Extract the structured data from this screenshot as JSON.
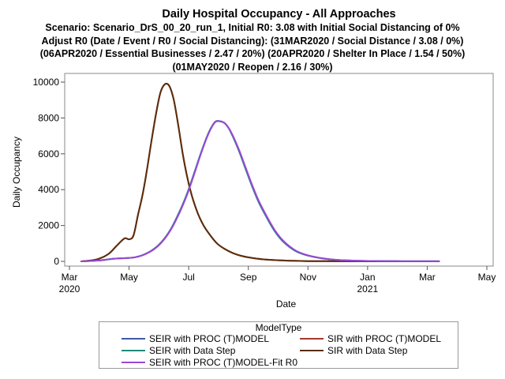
{
  "chart_data": {
    "type": "line",
    "title": "Daily Hospital Occupancy - All Approaches",
    "subtitle_lines": [
      "Scenario: Scenario_DrS_00_20_run_1, Initial R0: 3.08 with Initial Social Distancing of 0%",
      "Adjust R0 (Date / Event / R0 / Social Distancing): (31MAR2020 / Social Distance / 3.08 / 0%)",
      "(06APR2020 / Essential Businesses / 2.47 / 20%) (20APR2020 / Shelter In Place / 1.54 / 50%)",
      "(01MAY2020 / Reopen / 2.16 / 30%)"
    ],
    "xlabel": "Date",
    "ylabel": "Daily Occupancy",
    "ylim": [
      0,
      10000
    ],
    "yticks": [
      "0",
      "2000",
      "4000",
      "6000",
      "8000",
      "10000"
    ],
    "xlim_months": [
      0,
      14
    ],
    "xticks": [
      {
        "m": 0,
        "label": "Mar",
        "year": "2020"
      },
      {
        "m": 2,
        "label": "May",
        "year": ""
      },
      {
        "m": 4,
        "label": "Jul",
        "year": ""
      },
      {
        "m": 6,
        "label": "Sep",
        "year": ""
      },
      {
        "m": 8,
        "label": "Nov",
        "year": ""
      },
      {
        "m": 10,
        "label": "Jan",
        "year": "2021"
      },
      {
        "m": 12,
        "label": "Mar",
        "year": ""
      },
      {
        "m": 14,
        "label": "May",
        "year": ""
      }
    ],
    "legend_title": "ModelType",
    "series": [
      {
        "name": "SEIR with PROC (T)MODEL",
        "color": "#3f58a6",
        "width": 2,
        "x": [
          0.4,
          1.0,
          1.5,
          1.9,
          2.2,
          2.5,
          2.8,
          3.1,
          3.4,
          3.7,
          3.95,
          4.2,
          4.4,
          4.6,
          4.75,
          4.9,
          5.05,
          5.2,
          5.35,
          5.5,
          5.7,
          5.9,
          6.1,
          6.35,
          6.6,
          6.9,
          7.2,
          7.6,
          8.0,
          8.5,
          9.0,
          9.6,
          10.2,
          11.0,
          11.8,
          12.4
        ],
        "values": [
          0,
          50,
          150,
          180,
          230,
          380,
          650,
          1100,
          1800,
          2800,
          3800,
          5000,
          6000,
          6900,
          7450,
          7800,
          7820,
          7720,
          7400,
          6900,
          6100,
          5200,
          4300,
          3300,
          2500,
          1650,
          1050,
          560,
          320,
          160,
          75,
          35,
          18,
          8,
          5,
          5
        ]
      },
      {
        "name": "SIR with PROC (T)MODEL",
        "color": "#a23b2c",
        "width": 2,
        "x": [
          0.4,
          0.9,
          1.3,
          1.6,
          1.85,
          2.0,
          2.15,
          2.3,
          2.45,
          2.6,
          2.75,
          2.9,
          3.05,
          3.2,
          3.35,
          3.5,
          3.65,
          3.8,
          3.95,
          4.1,
          4.3,
          4.5,
          4.7,
          4.95,
          5.2,
          5.5,
          5.8,
          6.2,
          6.6,
          7.0,
          7.5,
          8.0,
          8.6,
          9.3,
          10.0,
          11.0,
          11.8,
          12.4
        ],
        "values": [
          0,
          100,
          400,
          900,
          1280,
          1230,
          1450,
          2600,
          3700,
          5100,
          6700,
          8200,
          9400,
          9880,
          9780,
          9000,
          7600,
          6000,
          4700,
          3700,
          2700,
          2000,
          1500,
          1000,
          700,
          450,
          290,
          170,
          100,
          60,
          30,
          15,
          8,
          4,
          2,
          1,
          0,
          0
        ]
      },
      {
        "name": "SEIR with Data Step",
        "color": "#1f8a7a",
        "width": 2,
        "x": [
          0.4,
          1.0,
          1.5,
          1.9,
          2.2,
          2.5,
          2.8,
          3.1,
          3.4,
          3.7,
          3.95,
          4.2,
          4.4,
          4.6,
          4.75,
          4.9,
          5.05,
          5.2,
          5.35,
          5.5,
          5.7,
          5.9,
          6.1,
          6.35,
          6.6,
          6.9,
          7.2,
          7.6,
          8.0,
          8.5,
          9.0,
          9.6,
          10.2,
          11.0,
          11.8,
          12.4
        ],
        "values": [
          0,
          50,
          150,
          180,
          230,
          380,
          650,
          1100,
          1800,
          2800,
          3800,
          5000,
          6000,
          6900,
          7450,
          7800,
          7820,
          7720,
          7400,
          6900,
          6100,
          5200,
          4300,
          3300,
          2500,
          1650,
          1050,
          560,
          320,
          160,
          75,
          35,
          18,
          8,
          5,
          5
        ]
      },
      {
        "name": "SIR with Data Step",
        "color": "#5a2d0c",
        "width": 2,
        "x": [
          0.4,
          0.9,
          1.3,
          1.6,
          1.85,
          2.0,
          2.15,
          2.3,
          2.45,
          2.6,
          2.75,
          2.9,
          3.05,
          3.2,
          3.35,
          3.5,
          3.65,
          3.8,
          3.95,
          4.1,
          4.3,
          4.5,
          4.7,
          4.95,
          5.2,
          5.5,
          5.8,
          6.2,
          6.6,
          7.0,
          7.5,
          8.0,
          8.6,
          9.3,
          10.0,
          11.0,
          11.8,
          12.4
        ],
        "values": [
          0,
          100,
          400,
          900,
          1280,
          1230,
          1450,
          2600,
          3700,
          5100,
          6700,
          8200,
          9400,
          9880,
          9780,
          9000,
          7600,
          6000,
          4700,
          3700,
          2700,
          2000,
          1500,
          1000,
          700,
          450,
          290,
          170,
          100,
          60,
          30,
          15,
          8,
          4,
          2,
          1,
          0,
          0
        ]
      },
      {
        "name": "SEIR with PROC (T)MODEL-Fit R0",
        "color": "#9a47d6",
        "width": 2,
        "x": [
          0.4,
          1.0,
          1.5,
          1.9,
          2.2,
          2.5,
          2.8,
          3.1,
          3.4,
          3.7,
          3.95,
          4.2,
          4.4,
          4.6,
          4.75,
          4.9,
          5.05,
          5.2,
          5.35,
          5.5,
          5.7,
          5.9,
          6.1,
          6.35,
          6.6,
          6.9,
          7.2,
          7.6,
          8.0,
          8.5,
          9.0,
          9.6,
          10.2,
          11.0,
          11.8,
          12.4
        ],
        "values": [
          0,
          50,
          150,
          180,
          225,
          370,
          630,
          1070,
          1760,
          2740,
          3740,
          4940,
          5950,
          6860,
          7420,
          7780,
          7810,
          7720,
          7420,
          6950,
          6170,
          5280,
          4380,
          3380,
          2570,
          1710,
          1100,
          590,
          340,
          170,
          80,
          38,
          20,
          9,
          5,
          5
        ]
      }
    ]
  },
  "legend": {
    "title": "ModelType",
    "items": [
      {
        "label": "SEIR with PROC (T)MODEL",
        "color": "#3f58a6"
      },
      {
        "label": "SIR with PROC (T)MODEL",
        "color": "#a23b2c"
      },
      {
        "label": "SEIR with Data Step",
        "color": "#1f8a7a"
      },
      {
        "label": "SIR with Data Step",
        "color": "#5a2d0c"
      },
      {
        "label": "SEIR with PROC (T)MODEL-Fit R0",
        "color": "#9a47d6"
      }
    ]
  }
}
